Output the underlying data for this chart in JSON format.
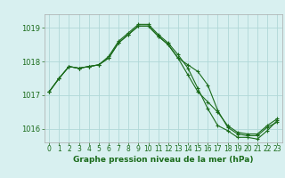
{
  "title": "Graphe pression niveau de la mer (hPa)",
  "background_color": "#d8f0f0",
  "grid_color": "#b0d8d8",
  "line_color": "#1a6b1a",
  "marker_color": "#1a6b1a",
  "xlim": [
    -0.5,
    23.5
  ],
  "ylim": [
    1015.6,
    1019.4
  ],
  "yticks": [
    1016,
    1017,
    1018,
    1019
  ],
  "xticks": [
    0,
    1,
    2,
    3,
    4,
    5,
    6,
    7,
    8,
    9,
    10,
    11,
    12,
    13,
    14,
    15,
    16,
    17,
    18,
    19,
    20,
    21,
    22,
    23
  ],
  "line1": [
    1017.1,
    1017.5,
    1017.85,
    1017.8,
    1017.85,
    1017.9,
    1018.1,
    1018.55,
    1018.8,
    1019.05,
    1019.05,
    1018.75,
    1018.5,
    1018.1,
    1017.9,
    1017.7,
    1017.3,
    1016.55,
    1016.05,
    1015.85,
    1015.8,
    1015.8,
    1016.05,
    1016.2
  ],
  "line2": [
    1017.1,
    1017.5,
    1017.85,
    1017.8,
    1017.85,
    1017.9,
    1018.1,
    1018.55,
    1018.8,
    1019.05,
    1019.05,
    1018.75,
    1018.5,
    1018.1,
    1017.6,
    1017.1,
    1016.8,
    1016.5,
    1016.1,
    1015.9,
    1015.85,
    1015.85,
    1016.1,
    1016.3
  ],
  "line3": [
    1017.1,
    1017.5,
    1017.85,
    1017.8,
    1017.85,
    1017.9,
    1018.15,
    1018.6,
    1018.85,
    1019.1,
    1019.1,
    1018.8,
    1018.55,
    1018.2,
    1017.8,
    1017.2,
    1016.6,
    1016.1,
    1015.95,
    1015.75,
    1015.75,
    1015.7,
    1015.95,
    1016.25
  ]
}
